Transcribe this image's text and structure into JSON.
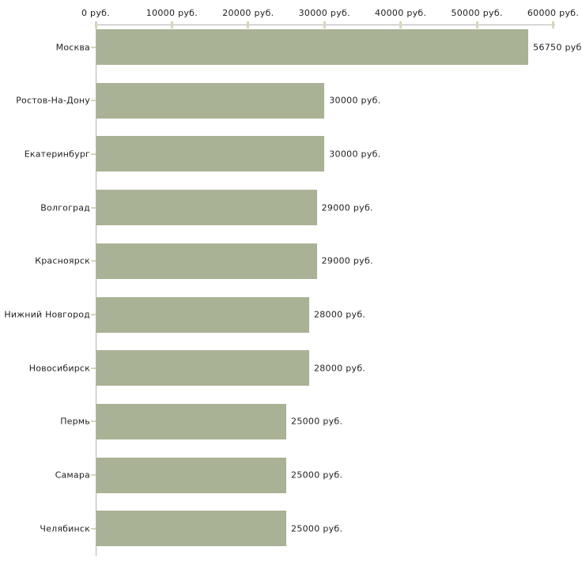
{
  "chart_data": {
    "type": "bar",
    "orientation": "horizontal",
    "title": "",
    "categories": [
      "Москва",
      "Ростов-На-Дону",
      "Екатеринбург",
      "Волгоград",
      "Красноярск",
      "Нижний Новгород",
      "Новосибирск",
      "Пермь",
      "Самара",
      "Челябинск"
    ],
    "values": [
      56750,
      30000,
      30000,
      29000,
      29000,
      28000,
      28000,
      25000,
      25000,
      25000
    ],
    "bar_value_labels": [
      "56750 руб",
      "30000 руб.",
      "30000 руб.",
      "29000 руб.",
      "29000 руб.",
      "28000 руб.",
      "28000 руб.",
      "25000 руб.",
      "25000 руб.",
      "25000 руб."
    ],
    "x_axis": {
      "position": "top",
      "min": 0,
      "max": 60000,
      "tick_interval": 10000,
      "tick_values": [
        0,
        10000,
        20000,
        30000,
        40000,
        50000,
        60000
      ],
      "tick_labels": [
        "0 руб.",
        "10000 руб.",
        "20000 руб.",
        "30000 руб.",
        "40000 руб.",
        "50000 руб.",
        "60000 руб."
      ]
    },
    "legend": "none",
    "grid": "off",
    "colors": {
      "bar": "#aab295",
      "tick_mark": "#d6d7b9",
      "axis_line": "#b3b3b3",
      "text": "#1f1f1f",
      "background": "#ffffff"
    }
  }
}
